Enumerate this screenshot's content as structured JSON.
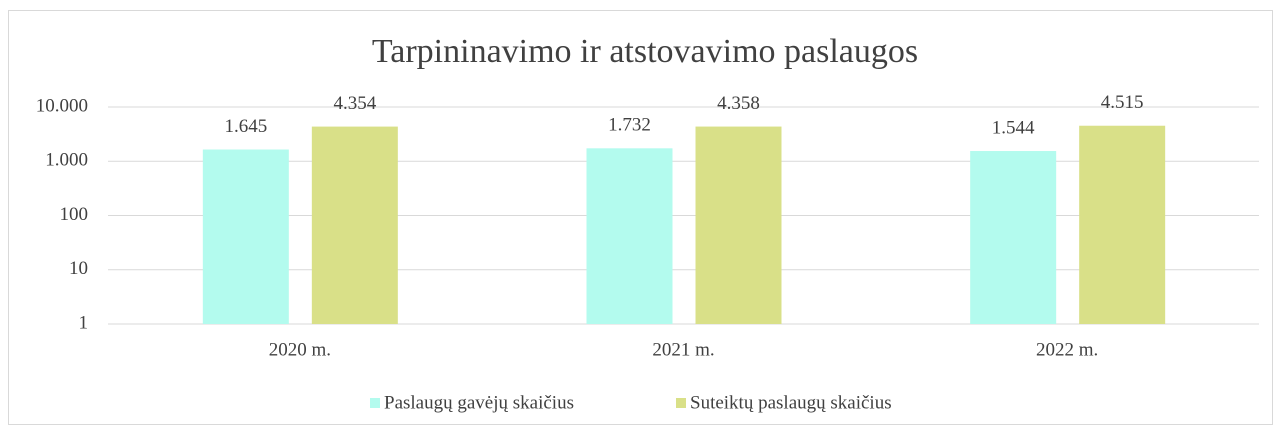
{
  "chart_data": {
    "type": "bar",
    "title": "Tarpininavimo ir atstovavimo paslaugos",
    "categories": [
      "2020 m.",
      "2021 m.",
      "2022 m."
    ],
    "series": [
      {
        "name": "Paslaugų gavėjų skaičius",
        "color": "#b3fbee",
        "values": [
          1645,
          1732,
          1544
        ],
        "value_labels": [
          "1.645",
          "1.732",
          "1.544"
        ]
      },
      {
        "name": "Suteiktų paslaugų skaičius",
        "color": "#d9e088",
        "values": [
          4354,
          4358,
          4515
        ],
        "value_labels": [
          "4.354",
          "4.358",
          "4.515"
        ]
      }
    ],
    "ylim": [
      1,
      10000
    ],
    "log_scale": true,
    "yticks": [
      1,
      10,
      100,
      {
        "value": 1000,
        "label": "1.000"
      },
      {
        "value": 10000,
        "label": "10.000"
      }
    ],
    "grid": true,
    "legend": "bottom"
  }
}
